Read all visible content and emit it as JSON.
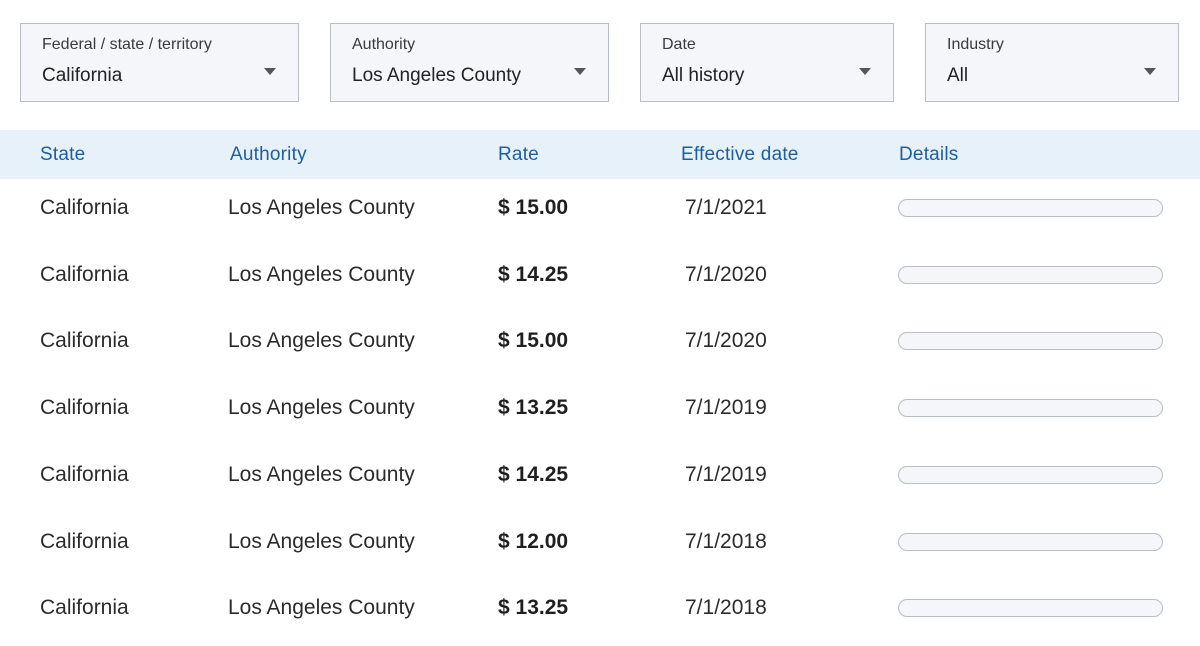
{
  "filters": [
    {
      "label": "Federal / state / territory",
      "value": "California"
    },
    {
      "label": "Authority",
      "value": "Los Angeles County"
    },
    {
      "label": "Date",
      "value": "All history"
    },
    {
      "label": "Industry",
      "value": "All"
    }
  ],
  "table": {
    "headers": [
      "State",
      "Authority",
      "Rate",
      "Effective date",
      "Details"
    ],
    "rows": [
      {
        "state": "California",
        "authority": "Los Angeles County",
        "rate": "$ 15.00",
        "effective_date": "7/1/2021"
      },
      {
        "state": "California",
        "authority": "Los Angeles County",
        "rate": "$ 14.25",
        "effective_date": "7/1/2020"
      },
      {
        "state": "California",
        "authority": "Los Angeles County",
        "rate": "$ 15.00",
        "effective_date": "7/1/2020"
      },
      {
        "state": "California",
        "authority": "Los Angeles County",
        "rate": "$ 13.25",
        "effective_date": "7/1/2019"
      },
      {
        "state": "California",
        "authority": "Los Angeles County",
        "rate": "$ 14.25",
        "effective_date": "7/1/2019"
      },
      {
        "state": "California",
        "authority": "Los Angeles County",
        "rate": "$ 12.00",
        "effective_date": "7/1/2018"
      },
      {
        "state": "California",
        "authority": "Los Angeles County",
        "rate": "$ 13.25",
        "effective_date": "7/1/2018"
      }
    ]
  },
  "colors": {
    "header_background": "#e7f1fa",
    "header_text": "#1d5e9e",
    "filter_background": "#f4f6f9",
    "border": "#b9bec5"
  },
  "icons": {
    "dropdown": "caret-down-icon"
  }
}
